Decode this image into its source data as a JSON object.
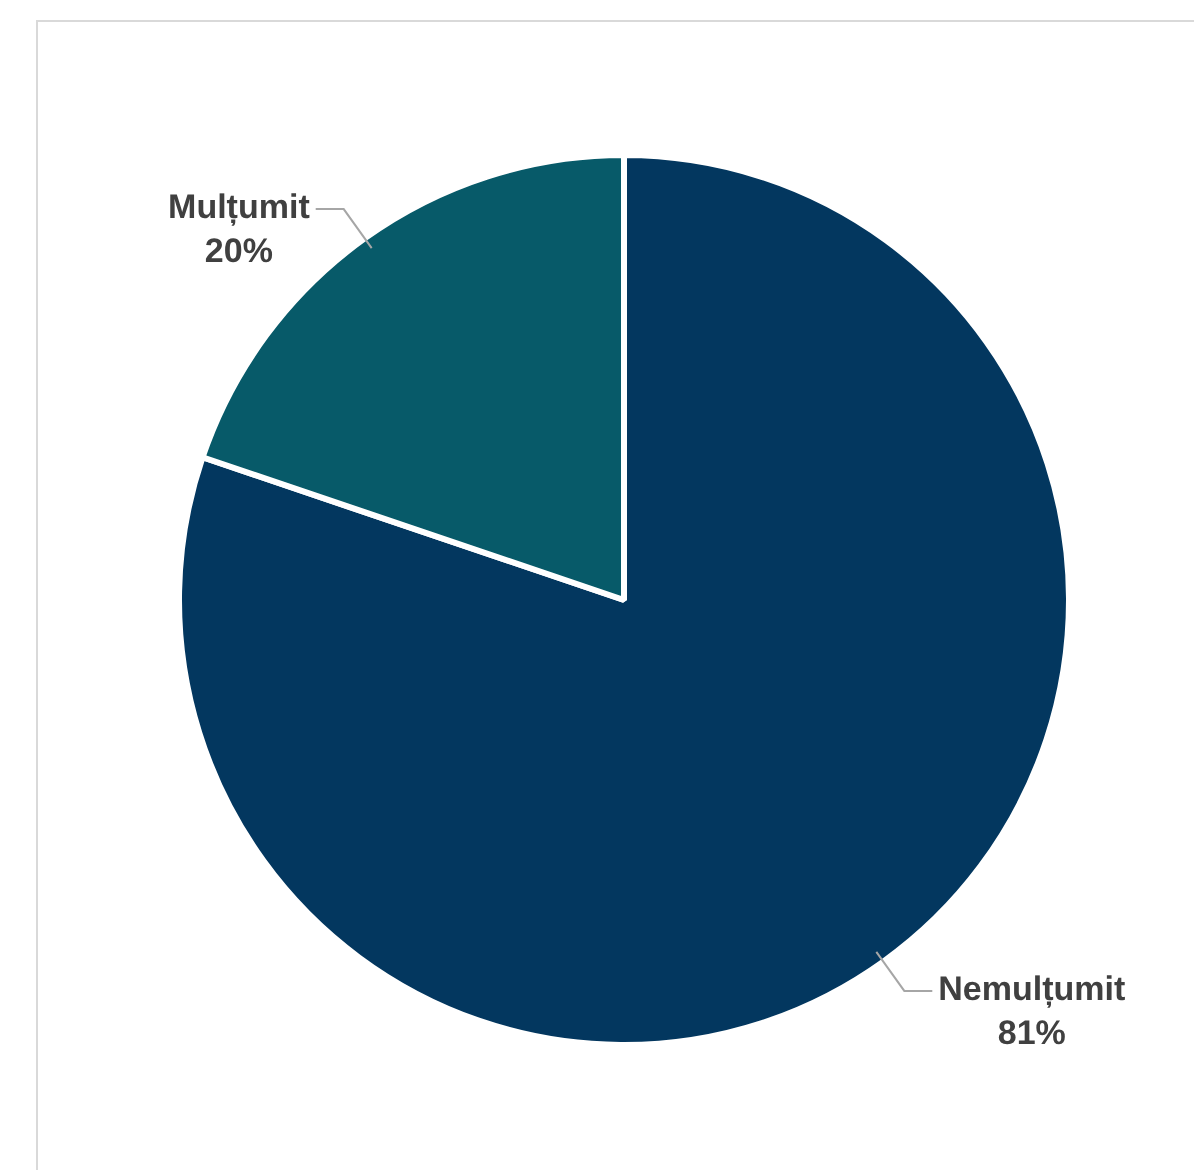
{
  "chart_data": {
    "type": "pie",
    "categories": [
      "Nemulțumit",
      "Mulțumit"
    ],
    "values": [
      81,
      20
    ],
    "value_labels": [
      "81%",
      "20%"
    ],
    "colors": [
      "#03375f",
      "#075a69"
    ],
    "legend": false
  }
}
